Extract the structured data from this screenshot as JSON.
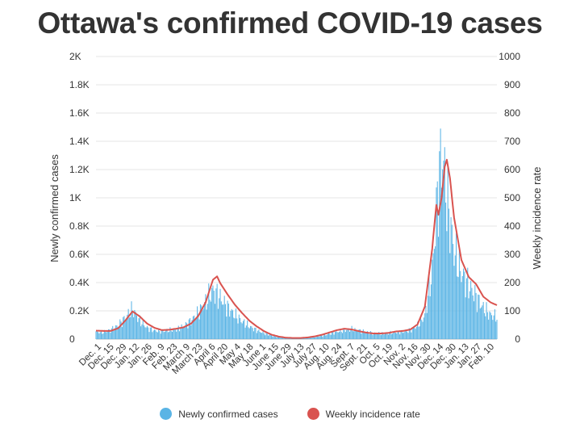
{
  "chart_data": {
    "type": "bar+line",
    "title": "Ottawa's confirmed COVID-19 cases",
    "y_left_label": "Newly confirmed cases",
    "y_right_label": "Weekly incidence rate",
    "y_left_ticks": [
      "2K",
      "1.8K",
      "1.6K",
      "1.4K",
      "1.2K",
      "1K",
      "0.8K",
      "0.6K",
      "0.4K",
      "0.2K",
      "0"
    ],
    "y_right_ticks": [
      "1000",
      "900",
      "800",
      "700",
      "600",
      "500",
      "400",
      "300",
      "200",
      "100",
      "0"
    ],
    "ylim_left": [
      0,
      2000
    ],
    "ylim_right": [
      0,
      1000
    ],
    "x_tick_labels": [
      "Dec. 1",
      "Dec. 15",
      "Dec. 29",
      "Jan. 12",
      "Jan. 26",
      "Feb. 9",
      "Feb. 23",
      "March 9",
      "March 23",
      "April 6",
      "April 20",
      "May 4",
      "May 18",
      "June 1",
      "June 15",
      "June 29",
      "July 13",
      "July 27",
      "Aug. 10",
      "Aug. 24",
      "Sept. 7",
      "Sept. 21",
      "Oct. 5",
      "Oct. 19",
      "Nov. 2",
      "Nov. 16",
      "Nov. 30",
      "Dec. 14",
      "Dec. 30",
      "Jan. 13",
      "Jan. 27",
      "Feb. 10"
    ],
    "grid": "horizontal",
    "legend_position": "bottom",
    "series": [
      {
        "name": "Newly confirmed cases",
        "type": "bar",
        "axis": "left",
        "color": "#5ab4e5",
        "keypoints": [
          [
            0,
            50
          ],
          [
            7,
            48
          ],
          [
            14,
            65
          ],
          [
            21,
            95
          ],
          [
            28,
            150
          ],
          [
            35,
            210
          ],
          [
            42,
            130
          ],
          [
            49,
            80
          ],
          [
            56,
            60
          ],
          [
            63,
            55
          ],
          [
            70,
            62
          ],
          [
            77,
            68
          ],
          [
            84,
            90
          ],
          [
            91,
            130
          ],
          [
            98,
            185
          ],
          [
            105,
            260
          ],
          [
            112,
            345
          ],
          [
            119,
            290
          ],
          [
            126,
            225
          ],
          [
            133,
            170
          ],
          [
            140,
            125
          ],
          [
            147,
            90
          ],
          [
            154,
            62
          ],
          [
            161,
            42
          ],
          [
            168,
            25
          ],
          [
            175,
            15
          ],
          [
            182,
            10
          ],
          [
            189,
            7
          ],
          [
            196,
            7
          ],
          [
            203,
            10
          ],
          [
            210,
            15
          ],
          [
            217,
            25
          ],
          [
            224,
            38
          ],
          [
            231,
            52
          ],
          [
            238,
            62
          ],
          [
            245,
            70
          ],
          [
            252,
            60
          ],
          [
            259,
            50
          ],
          [
            266,
            42
          ],
          [
            273,
            38
          ],
          [
            280,
            42
          ],
          [
            287,
            48
          ],
          [
            294,
            52
          ],
          [
            301,
            62
          ],
          [
            308,
            95
          ],
          [
            315,
            165
          ],
          [
            322,
            480
          ],
          [
            329,
            1200
          ],
          [
            332,
            1300
          ],
          [
            336,
            1000
          ],
          [
            343,
            620
          ],
          [
            350,
            470
          ],
          [
            357,
            380
          ],
          [
            364,
            300
          ],
          [
            371,
            220
          ],
          [
            378,
            170
          ],
          [
            384,
            160
          ]
        ]
      },
      {
        "name": "Weekly incidence rate",
        "type": "line",
        "axis": "right",
        "color": "#d9534f",
        "keypoints": [
          [
            0,
            30
          ],
          [
            7,
            29
          ],
          [
            14,
            29
          ],
          [
            21,
            38
          ],
          [
            28,
            65
          ],
          [
            35,
            98
          ],
          [
            42,
            80
          ],
          [
            49,
            55
          ],
          [
            56,
            40
          ],
          [
            63,
            32
          ],
          [
            70,
            33
          ],
          [
            77,
            37
          ],
          [
            84,
            42
          ],
          [
            91,
            55
          ],
          [
            98,
            82
          ],
          [
            105,
            130
          ],
          [
            112,
            210
          ],
          [
            116,
            222
          ],
          [
            119,
            198
          ],
          [
            126,
            158
          ],
          [
            133,
            122
          ],
          [
            140,
            92
          ],
          [
            147,
            65
          ],
          [
            154,
            45
          ],
          [
            161,
            28
          ],
          [
            168,
            16
          ],
          [
            175,
            9
          ],
          [
            182,
            5
          ],
          [
            189,
            4
          ],
          [
            196,
            4
          ],
          [
            203,
            6
          ],
          [
            210,
            10
          ],
          [
            217,
            16
          ],
          [
            224,
            24
          ],
          [
            231,
            32
          ],
          [
            238,
            37
          ],
          [
            245,
            34
          ],
          [
            252,
            28
          ],
          [
            259,
            23
          ],
          [
            266,
            20
          ],
          [
            273,
            20
          ],
          [
            280,
            22
          ],
          [
            287,
            27
          ],
          [
            294,
            29
          ],
          [
            301,
            34
          ],
          [
            308,
            52
          ],
          [
            315,
            115
          ],
          [
            322,
            320
          ],
          [
            326,
            475
          ],
          [
            328,
            440
          ],
          [
            331,
            500
          ],
          [
            334,
            610
          ],
          [
            336,
            635
          ],
          [
            339,
            570
          ],
          [
            343,
            430
          ],
          [
            350,
            280
          ],
          [
            357,
            220
          ],
          [
            364,
            195
          ],
          [
            371,
            150
          ],
          [
            378,
            130
          ],
          [
            384,
            120
          ]
        ]
      }
    ]
  },
  "legend": {
    "items": [
      {
        "label": "Newly confirmed cases",
        "color": "#5ab4e5"
      },
      {
        "label": "Weekly incidence rate",
        "color": "#d9534f"
      }
    ]
  }
}
